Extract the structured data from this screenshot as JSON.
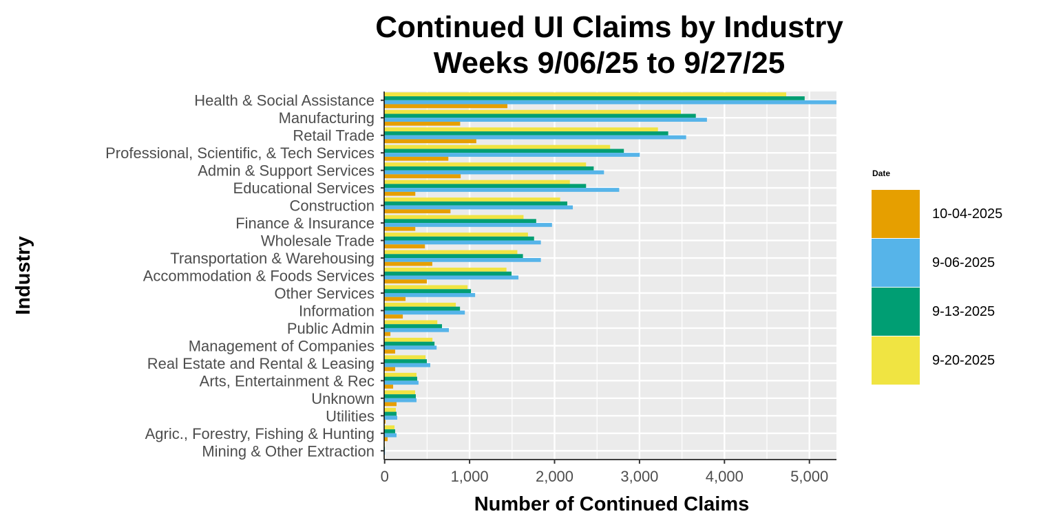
{
  "chart_data": {
    "type": "bar",
    "orientation": "horizontal",
    "title": "Continued UI Claims by Industry",
    "subtitle": "Weeks 9/06/25 to 9/27/25",
    "xlabel": "Number of Continued Claims",
    "ylabel": "Industry",
    "xlim": [
      0,
      5370
    ],
    "xticks": [
      0,
      1000,
      2000,
      3000,
      4000,
      5000
    ],
    "xtick_labels": [
      "0",
      "1,000",
      "2,000",
      "3,000",
      "4,000",
      "5,000"
    ],
    "grid": true,
    "legend_title": "Date",
    "legend_position": "right",
    "categories": [
      "Health & Social Assistance",
      "Manufacturing",
      "Retail Trade",
      "Professional, Scientific, & Tech Services",
      "Admin & Support Services",
      "Educational Services",
      "Construction",
      "Finance & Insurance",
      "Wholesale Trade",
      "Transportation & Warehousing",
      "Accommodation & Foods Services",
      "Other Services",
      "Information",
      "Public Admin",
      "Management of Companies",
      "Real Estate and Rental & Leasing",
      "Arts, Entertainment & Rec",
      "Unknown",
      "Utilities",
      "Agric., Forestry, Fishing & Hunting",
      "Mining & Other Extraction"
    ],
    "series": [
      {
        "name": "10-04-2025",
        "color": "#E69F00",
        "values": [
          1445,
          889,
          1079,
          750,
          895,
          361,
          775,
          361,
          474,
          561,
          497,
          246,
          214,
          68,
          124,
          124,
          100,
          140,
          10,
          35,
          0
        ]
      },
      {
        "name": "9-06-2025",
        "color": "#56B4E9",
        "values": [
          5400,
          3794,
          3549,
          3003,
          2582,
          2761,
          2215,
          1970,
          1839,
          1839,
          1575,
          1065,
          944,
          756,
          612,
          537,
          399,
          375,
          148,
          140,
          4
        ]
      },
      {
        "name": "9-13-2025",
        "color": "#009E73",
        "values": [
          4944,
          3663,
          3338,
          2816,
          2461,
          2371,
          2150,
          1784,
          1759,
          1628,
          1494,
          1016,
          887,
          675,
          587,
          497,
          383,
          367,
          140,
          124,
          3
        ]
      },
      {
        "name": "9-20-2025",
        "color": "#F0E442",
        "values": [
          4727,
          3487,
          3217,
          2654,
          2371,
          2181,
          2066,
          1635,
          1687,
          1562,
          1434,
          976,
          838,
          620,
          563,
          481,
          375,
          359,
          132,
          116,
          2
        ]
      }
    ],
    "bar_order_top_to_bottom": [
      "9-20-2025",
      "9-13-2025",
      "9-06-2025",
      "10-04-2025"
    ]
  }
}
